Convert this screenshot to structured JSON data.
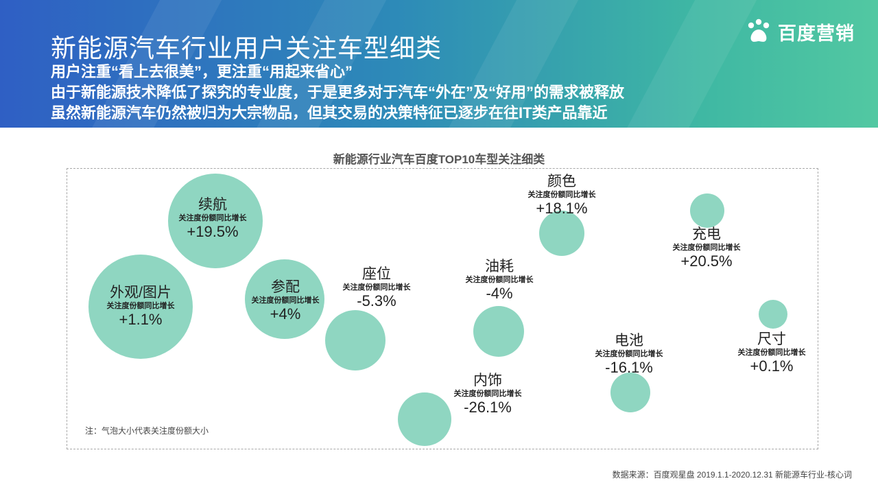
{
  "header": {
    "title": "新能源汽车行业用户关注车型细类",
    "lines": [
      "用户注重“看上去很美”，更注重“用起来省心”",
      "由于新能源技术降低了探究的专业度，于是更多对于汽车“外在”及“好用”的需求被释放",
      "虽然新能源汽车仍然被归为大宗物品，但其交易的决策特征已逐步在往IT类产品靠近"
    ],
    "logo_text": "百度营销",
    "logo_icon": "baidu-paw-icon"
  },
  "colors": {
    "bubble": "#8fd6c1",
    "header_start": "#2f5fc4",
    "header_end": "#52c8a2"
  },
  "chart_data": {
    "type": "bubble",
    "title": "新能源行业汽车百度TOP10车型关注细类",
    "metric_label": "关注度份额同比增长",
    "size_meaning": "注：气泡大小代表关注度份额大小",
    "items": [
      {
        "name": "外观/图片",
        "growth": "+1.1%"
      },
      {
        "name": "续航",
        "growth": "+19.5%"
      },
      {
        "name": "参配",
        "growth": "+4%"
      },
      {
        "name": "座位",
        "growth": "-5.3%"
      },
      {
        "name": "内饰",
        "growth": "-26.1%"
      },
      {
        "name": "油耗",
        "growth": "-4%"
      },
      {
        "name": "颜色",
        "growth": "+18.1%"
      },
      {
        "name": "电池",
        "growth": "-16.1%"
      },
      {
        "name": "充电",
        "growth": "+20.5%"
      },
      {
        "name": "尺寸",
        "growth": "+0.1%"
      }
    ]
  },
  "footer": {
    "source": "数据来源：百度观星盘 2019.1.1-2020.12.31 新能源车行业-核心词"
  }
}
